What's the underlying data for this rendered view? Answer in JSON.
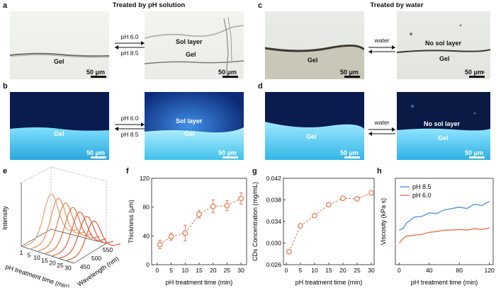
{
  "panels": {
    "a": "a",
    "b": "b",
    "c": "c",
    "d": "d",
    "e": "e",
    "f": "f",
    "g": "g",
    "h": "h"
  },
  "headers": {
    "left": "Treated by pH solution",
    "right": "Treated by water"
  },
  "micro": {
    "gel": "Gel",
    "sol_layer": "Sol layer",
    "no_sol_layer": "No sol layer",
    "scale_bar": "50 μm",
    "ph_top": "pH 6.0",
    "ph_bottom": "pH 8.5",
    "water": "water"
  },
  "colors": {
    "orange": "#e8734a",
    "blue": "#4a90d9",
    "fluor_dark": "#0a1b4e",
    "fluor_bright": "#48c8f0"
  },
  "chart_data": [
    {
      "type": "line",
      "title": "",
      "xlabel": "pH treatment time (min)",
      "ylabel": "Intensity",
      "zlabel": "Wavelength (nm)",
      "x_ticks": [
        "1",
        "5",
        "10",
        "15",
        "20",
        "25",
        "30"
      ],
      "z_ticks": [
        "450",
        "500",
        "550"
      ],
      "series_count": 7
    },
    {
      "type": "scatter",
      "title": "",
      "xlabel": "pH treatment time (min)",
      "ylabel": "Thickness (μm)",
      "x": [
        1,
        5,
        10,
        15,
        20,
        25,
        30
      ],
      "values": [
        28,
        39,
        44,
        70,
        81,
        82,
        92
      ],
      "errors": [
        6,
        5,
        11,
        5,
        9,
        7,
        8
      ],
      "xlim": [
        -2,
        32
      ],
      "ylim": [
        0,
        120
      ],
      "x_ticks": [
        "0",
        "5",
        "10",
        "15",
        "20",
        "25",
        "30"
      ],
      "y_ticks": [
        "0",
        "40",
        "80",
        "120"
      ]
    },
    {
      "type": "scatter",
      "title": "",
      "xlabel": "pH treatment time (min)",
      "ylabel": "CDs Concentration (mg/mL)",
      "x": [
        1,
        5,
        10,
        15,
        20,
        25,
        30
      ],
      "values": [
        0.0284,
        0.0332,
        0.0351,
        0.0371,
        0.0383,
        0.0382,
        0.0393
      ],
      "xlim": [
        -1,
        31
      ],
      "ylim": [
        0.026,
        0.042
      ],
      "x_ticks": [
        "0",
        "5",
        "10",
        "15",
        "20",
        "25",
        "30"
      ],
      "y_ticks": [
        "0.026",
        "0.030",
        "0.034",
        "0.038",
        "0.042"
      ]
    },
    {
      "type": "line",
      "title": "",
      "xlabel": "pH treatment time (min)",
      "ylabel": "Viscosity (kPa s)",
      "xlim": [
        -5,
        125
      ],
      "x_ticks": [
        "0",
        "40",
        "80",
        "120"
      ],
      "legend": [
        "pH 8.5",
        "pH 6.0"
      ],
      "series": [
        {
          "name": "pH 8.5",
          "x": [
            0,
            5,
            10,
            15,
            20,
            30,
            40,
            50,
            60,
            70,
            80,
            90,
            100,
            110,
            120
          ],
          "values": [
            2.4,
            2.5,
            2.9,
            3.1,
            3.3,
            3.35,
            3.6,
            3.55,
            3.8,
            3.9,
            4.0,
            3.9,
            4.2,
            4.1,
            4.4
          ]
        },
        {
          "name": "pH 6.0",
          "x": [
            0,
            5,
            10,
            15,
            20,
            30,
            40,
            50,
            60,
            70,
            80,
            90,
            100,
            110,
            120
          ],
          "values": [
            1.5,
            1.8,
            2.0,
            2.0,
            2.05,
            2.1,
            2.25,
            2.3,
            2.4,
            2.4,
            2.45,
            2.4,
            2.5,
            2.45,
            2.55
          ]
        }
      ]
    }
  ]
}
